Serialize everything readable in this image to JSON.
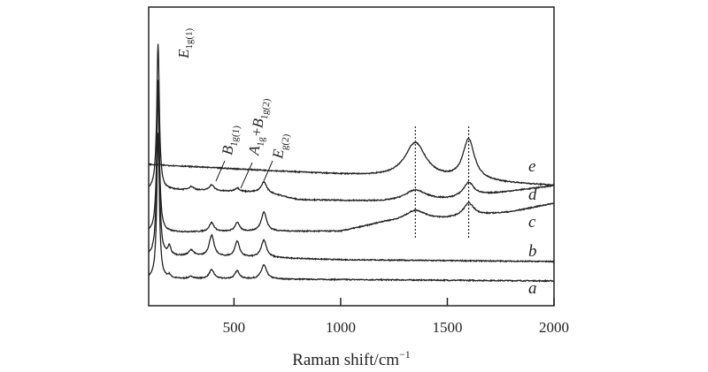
{
  "chart_data": {
    "type": "line",
    "xlabel": "Raman shift/cm",
    "xlabel_sup": "−1",
    "xlim": [
      100,
      2000
    ],
    "xticks": [
      500,
      1000,
      1500,
      2000
    ],
    "ylim": [
      0,
      100
    ],
    "yticks_shown": false,
    "grid": false,
    "reference_lines_x": [
      1350,
      1600
    ],
    "annotations": [
      {
        "main": "E",
        "sub": "1g(1)"
      },
      {
        "main": "B",
        "sub": "1g(1)"
      },
      {
        "main": "A",
        "sub": "1g",
        "plus": "+",
        "main2": "B",
        "sub2": "1g(2)"
      },
      {
        "main": "E",
        "sub": "g(2)"
      }
    ],
    "series": [
      {
        "name": "a",
        "baseline": [
          [
            100,
            9
          ],
          [
            700,
            8.9
          ],
          [
            2000,
            8.3
          ]
        ],
        "peaks": [
          [
            144,
            49,
            7
          ],
          [
            197,
            1,
            8
          ],
          [
            300,
            0.7,
            15
          ],
          [
            395,
            3,
            14
          ],
          [
            515,
            2.7,
            13
          ],
          [
            640,
            4.7,
            15
          ]
        ]
      },
      {
        "name": "b",
        "baseline": [
          [
            100,
            16.6
          ],
          [
            200,
            16.6
          ],
          [
            700,
            16
          ],
          [
            1000,
            15.4
          ],
          [
            2000,
            14.8
          ]
        ],
        "peaks": [
          [
            144,
            56,
            7
          ],
          [
            197,
            3,
            8
          ],
          [
            300,
            2,
            15
          ],
          [
            395,
            7.1,
            14
          ],
          [
            515,
            5.3,
            13
          ],
          [
            640,
            5.9,
            15
          ]
        ]
      },
      {
        "name": "c",
        "baseline": [
          [
            100,
            24.6
          ],
          [
            200,
            24.6
          ],
          [
            700,
            24.9
          ],
          [
            1000,
            24.9
          ],
          [
            1200,
            27.8
          ],
          [
            1500,
            29
          ],
          [
            1800,
            31.4
          ],
          [
            2000,
            34.3
          ]
        ],
        "peaks": [
          [
            144,
            51,
            7
          ],
          [
            395,
            3,
            14
          ],
          [
            515,
            3,
            13
          ],
          [
            640,
            6.5,
            15
          ],
          [
            1350,
            3.5,
            60
          ],
          [
            1600,
            4.4,
            30
          ]
        ]
      },
      {
        "name": "d",
        "baseline": [
          [
            100,
            38.8
          ],
          [
            200,
            38.8
          ],
          [
            650,
            37.9
          ],
          [
            800,
            35.5
          ],
          [
            1200,
            34.9
          ],
          [
            1500,
            35.5
          ],
          [
            2000,
            40.2
          ]
        ],
        "peaks": [
          [
            144,
            49,
            7
          ],
          [
            300,
            1.2,
            15
          ],
          [
            395,
            2,
            14
          ],
          [
            515,
            1.2,
            13
          ],
          [
            640,
            3.5,
            15
          ],
          [
            1350,
            3.5,
            60
          ],
          [
            1600,
            4.7,
            30
          ]
        ]
      },
      {
        "name": "e",
        "baseline": [
          [
            100,
            47.3
          ],
          [
            2000,
            40.2
          ]
        ],
        "peaks": [
          [
            1350,
            11.8,
            60
          ],
          [
            1600,
            13.6,
            33
          ]
        ]
      }
    ]
  }
}
